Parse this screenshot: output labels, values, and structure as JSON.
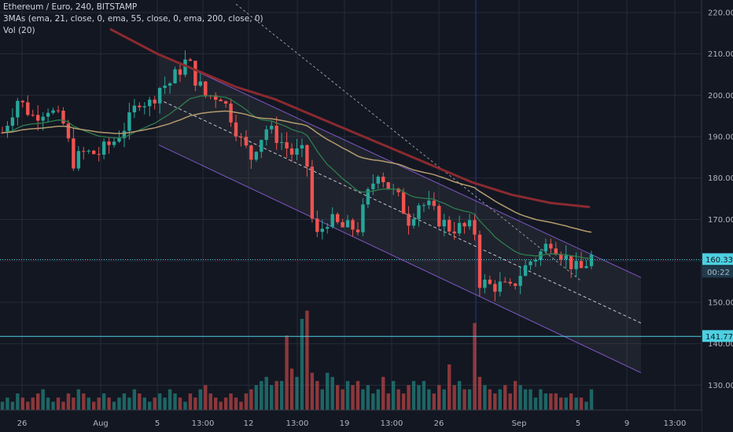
{
  "legend": {
    "symbol": "Ethereum / Euro, 240, BITSTAMP",
    "mas": "3MAs (ema, 21, close, 0, ema, 55, close, 0, ema, 200, close, 0)",
    "volume": "Vol (20)"
  },
  "colors": {
    "background": "#131722",
    "grid": "#262b38",
    "up": "#26a69a",
    "down": "#ef5350",
    "ema21": "#2f7d4f",
    "ema55": "#b39b6e",
    "ema200": "#8a2a2f",
    "channel": "#7e57c2",
    "hline": "#4dd0e1",
    "price_badge": "#4dd0e1"
  },
  "chart_data": {
    "type": "candlestick",
    "y_axis_ticks": [
      "220.00",
      "210.00",
      "200.00",
      "190.00",
      "180.00",
      "170.00",
      "160.00",
      "150.00",
      "140.00",
      "130.00"
    ],
    "ylim": [
      124,
      223
    ],
    "x_axis_labels": [
      "26",
      "Aug",
      "5",
      "13:00",
      "12",
      "13:00",
      "19",
      "13:00",
      "26",
      "Sep",
      "5",
      "9",
      "13:00"
    ],
    "current_price": "160.33",
    "countdown": "00:22",
    "horizontal_levels": [
      "160.33",
      "141.77"
    ],
    "price_path": [
      [
        0,
        191
      ],
      [
        3,
        199
      ],
      [
        6,
        195
      ],
      [
        9,
        197
      ],
      [
        12,
        193
      ],
      [
        14,
        184
      ],
      [
        16,
        186
      ],
      [
        19,
        186
      ],
      [
        22,
        189
      ],
      [
        25,
        194
      ],
      [
        27,
        199
      ],
      [
        29,
        198
      ],
      [
        31,
        202
      ],
      [
        33,
        203
      ],
      [
        36,
        208
      ],
      [
        37,
        207
      ],
      [
        38,
        204
      ],
      [
        40,
        200
      ],
      [
        43,
        200
      ],
      [
        45,
        195
      ],
      [
        47,
        189
      ],
      [
        49,
        185
      ],
      [
        50,
        188
      ],
      [
        52,
        192
      ],
      [
        54,
        190
      ],
      [
        57,
        186
      ],
      [
        59,
        186
      ],
      [
        60,
        183
      ],
      [
        61,
        170
      ],
      [
        62,
        166
      ],
      [
        64,
        170
      ],
      [
        67,
        168
      ],
      [
        70,
        168
      ],
      [
        72,
        176
      ],
      [
        74,
        182
      ],
      [
        76,
        178
      ],
      [
        78,
        175
      ],
      [
        80,
        170
      ],
      [
        82,
        174
      ],
      [
        84,
        173
      ],
      [
        86,
        170
      ],
      [
        88,
        168
      ],
      [
        90,
        168
      ],
      [
        92,
        168
      ],
      [
        93,
        167
      ],
      [
        94,
        155
      ],
      [
        96,
        154
      ],
      [
        98,
        154
      ],
      [
        100,
        153
      ],
      [
        102,
        157
      ],
      [
        104,
        160
      ],
      [
        106,
        162
      ],
      [
        108,
        165
      ],
      [
        110,
        162
      ],
      [
        113,
        158
      ],
      [
        114,
        158
      ],
      [
        116,
        161
      ]
    ],
    "volume": [
      126,
      127,
      126,
      128,
      127,
      126,
      127,
      128,
      129,
      127,
      126,
      127,
      126,
      128,
      127,
      129,
      128,
      127,
      126,
      127,
      128,
      127,
      126,
      127,
      128,
      127,
      129,
      128,
      127,
      126,
      127,
      128,
      127,
      129,
      128,
      127,
      126,
      128,
      127,
      129,
      130,
      128,
      127,
      126,
      127,
      128,
      127,
      126,
      128,
      129,
      130,
      131,
      132,
      130,
      131,
      131,
      142,
      134,
      132,
      146,
      148,
      133,
      131,
      129,
      133,
      132,
      130,
      129,
      131,
      130,
      131,
      129,
      130,
      128,
      129,
      132,
      128,
      131,
      129,
      128,
      130,
      131,
      130,
      131,
      129,
      128,
      130,
      129,
      135,
      130,
      131,
      129,
      129,
      145,
      132,
      130,
      129,
      128,
      129,
      130,
      128,
      131,
      130,
      129,
      129,
      127,
      129,
      128,
      128,
      128,
      127,
      127,
      128,
      127,
      127,
      126,
      129
    ],
    "ema200": [
      [
        140,
        216
      ],
      [
        200,
        210
      ],
      [
        250,
        206
      ],
      [
        300,
        202
      ],
      [
        350,
        199
      ],
      [
        400,
        195
      ],
      [
        450,
        191
      ],
      [
        500,
        187
      ],
      [
        550,
        183
      ],
      [
        600,
        179
      ],
      [
        650,
        176
      ],
      [
        700,
        174
      ],
      [
        750,
        173
      ]
    ],
    "channel_upper": [
      [
        202,
        210
      ],
      [
        815,
        156
      ]
    ],
    "channel_lower": [
      [
        202,
        188
      ],
      [
        815,
        133
      ]
    ],
    "channel_mid": [
      [
        202,
        199
      ],
      [
        815,
        145
      ]
    ],
    "trend_dashed": [
      [
        300,
        222
      ],
      [
        740,
        155
      ]
    ]
  }
}
